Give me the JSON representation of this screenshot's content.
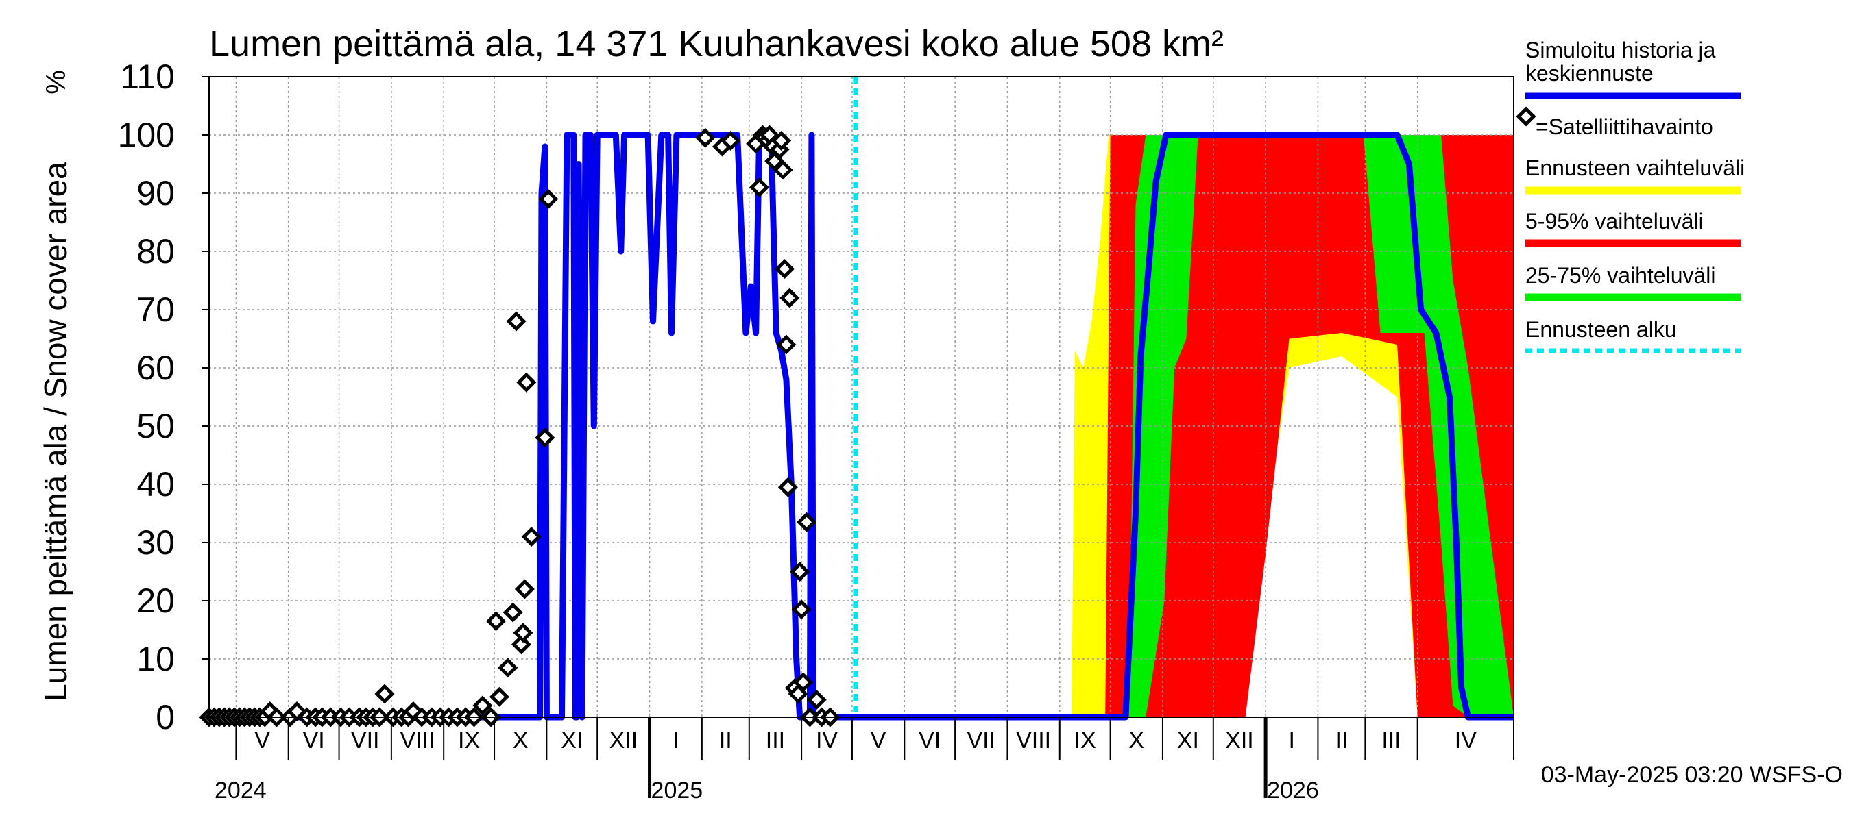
{
  "chart_data": {
    "type": "line",
    "title": "Lumen peittämä ala, 14 371 Kuuhankavesi koko alue 508 km²",
    "ylabel": "Lumen peittämä ala / Snow cover area",
    "yunit": "%",
    "ylim": [
      0,
      110
    ],
    "yticks": [
      0,
      10,
      20,
      30,
      40,
      50,
      60,
      70,
      80,
      90,
      100,
      110
    ],
    "x_axis": {
      "start": "2024-04-15",
      "end": "2026-05-28",
      "months": [
        {
          "label": "V",
          "start": "2024-05-01"
        },
        {
          "label": "VI",
          "start": "2024-06-01"
        },
        {
          "label": "VII",
          "start": "2024-07-01"
        },
        {
          "label": "VIII",
          "start": "2024-08-01"
        },
        {
          "label": "IX",
          "start": "2024-09-01"
        },
        {
          "label": "X",
          "start": "2024-10-01"
        },
        {
          "label": "XI",
          "start": "2024-11-01"
        },
        {
          "label": "XII",
          "start": "2024-12-01"
        },
        {
          "label": "I",
          "start": "2025-01-01"
        },
        {
          "label": "II",
          "start": "2025-02-01"
        },
        {
          "label": "III",
          "start": "2025-03-01"
        },
        {
          "label": "IV",
          "start": "2025-04-01"
        },
        {
          "label": "V",
          "start": "2025-05-01"
        },
        {
          "label": "VI",
          "start": "2025-06-01"
        },
        {
          "label": "VII",
          "start": "2025-07-01"
        },
        {
          "label": "VIII",
          "start": "2025-08-01"
        },
        {
          "label": "IX",
          "start": "2025-09-01"
        },
        {
          "label": "X",
          "start": "2025-10-01"
        },
        {
          "label": "XI",
          "start": "2025-11-01"
        },
        {
          "label": "XII",
          "start": "2025-12-01"
        },
        {
          "label": "I",
          "start": "2026-01-01"
        },
        {
          "label": "II",
          "start": "2026-02-01"
        },
        {
          "label": "III",
          "start": "2026-03-01"
        },
        {
          "label": "IV",
          "start": "2026-04-01"
        }
      ],
      "years": [
        {
          "label": "2024",
          "start": "2024-04-15"
        },
        {
          "label": "2025",
          "start": "2025-01-01"
        },
        {
          "label": "2026",
          "start": "2026-01-01"
        }
      ]
    },
    "forecast_start": "2025-05-03",
    "series": [
      {
        "name": "Simuloitu historia ja keskiennuste",
        "color": "#0000ee",
        "points": [
          [
            "2024-04-15",
            0
          ],
          [
            "2024-10-28",
            0
          ],
          [
            "2024-10-29",
            90
          ],
          [
            "2024-10-31",
            98
          ],
          [
            "2024-11-01",
            0
          ],
          [
            "2024-11-10",
            0
          ],
          [
            "2024-11-13",
            100
          ],
          [
            "2024-11-17",
            100
          ],
          [
            "2024-11-18",
            0
          ],
          [
            "2024-11-19",
            0
          ],
          [
            "2024-11-20",
            95
          ],
          [
            "2024-11-22",
            0
          ],
          [
            "2024-11-24",
            100
          ],
          [
            "2024-11-27",
            100
          ],
          [
            "2024-11-29",
            50
          ],
          [
            "2024-12-01",
            100
          ],
          [
            "2024-12-12",
            100
          ],
          [
            "2024-12-15",
            80
          ],
          [
            "2024-12-17",
            100
          ],
          [
            "2024-12-31",
            100
          ],
          [
            "2025-01-03",
            68
          ],
          [
            "2025-01-08",
            100
          ],
          [
            "2025-01-12",
            100
          ],
          [
            "2025-01-14",
            66
          ],
          [
            "2025-01-17",
            100
          ],
          [
            "2025-02-04",
            100
          ],
          [
            "2025-02-08",
            100
          ],
          [
            "2025-02-12",
            100
          ],
          [
            "2025-02-22",
            100
          ],
          [
            "2025-02-27",
            66
          ],
          [
            "2025-03-02",
            74
          ],
          [
            "2025-03-05",
            66
          ],
          [
            "2025-03-07",
            100
          ],
          [
            "2025-03-14",
            100
          ],
          [
            "2025-03-17",
            66
          ],
          [
            "2025-03-20",
            63
          ],
          [
            "2025-03-23",
            58
          ],
          [
            "2025-03-26",
            40
          ],
          [
            "2025-03-29",
            10
          ],
          [
            "2025-03-31",
            0
          ],
          [
            "2025-04-06",
            0
          ],
          [
            "2025-04-07",
            100
          ],
          [
            "2025-04-08",
            0
          ],
          [
            "2025-05-03",
            0
          ],
          [
            "2025-10-10",
            0
          ],
          [
            "2025-10-16",
            35
          ],
          [
            "2025-10-19",
            62
          ],
          [
            "2025-10-23",
            75
          ],
          [
            "2025-10-28",
            92
          ],
          [
            "2025-11-03",
            100
          ],
          [
            "2026-03-20",
            100
          ],
          [
            "2026-03-27",
            95
          ],
          [
            "2026-04-03",
            70
          ],
          [
            "2026-04-12",
            66
          ],
          [
            "2026-04-20",
            55
          ],
          [
            "2026-04-24",
            30
          ],
          [
            "2026-04-27",
            5
          ],
          [
            "2026-05-01",
            0
          ],
          [
            "2026-05-28",
            0
          ]
        ]
      }
    ],
    "bands": [
      {
        "name": "Ennusteen vaihteluväli",
        "color": "#ffff00",
        "points": [
          [
            "2025-09-08",
            0,
            0
          ],
          [
            "2025-09-10",
            0,
            63
          ],
          [
            "2025-09-15",
            0,
            60
          ],
          [
            "2025-09-20",
            0,
            68
          ],
          [
            "2025-09-25",
            0,
            82
          ],
          [
            "2025-09-30",
            0,
            100
          ],
          [
            "2025-10-20",
            0,
            100
          ],
          [
            "2025-11-20",
            0,
            100
          ],
          [
            "2025-12-15",
            0,
            100
          ],
          [
            "2026-01-15",
            60,
            100
          ],
          [
            "2026-02-15",
            62,
            100
          ],
          [
            "2026-03-20",
            55,
            100
          ],
          [
            "2026-04-01",
            0,
            100
          ],
          [
            "2026-05-20",
            0,
            100
          ],
          [
            "2026-05-28",
            0,
            100
          ]
        ]
      },
      {
        "name": "5-95% vaihteluväli",
        "color": "#ff0000",
        "points": [
          [
            "2025-09-28",
            0,
            0
          ],
          [
            "2025-10-01",
            0,
            100
          ],
          [
            "2025-10-20",
            0,
            100
          ],
          [
            "2025-11-20",
            0,
            100
          ],
          [
            "2025-12-20",
            0,
            100
          ],
          [
            "2026-01-01",
            28,
            100
          ],
          [
            "2026-01-15",
            65,
            100
          ],
          [
            "2026-02-15",
            66,
            100
          ],
          [
            "2026-03-20",
            64,
            100
          ],
          [
            "2026-04-01",
            0,
            100
          ],
          [
            "2026-05-20",
            0,
            100
          ],
          [
            "2026-05-28",
            0,
            100
          ]
        ]
      },
      {
        "name": "25-75% vaihteluväli",
        "color": "#00ee00",
        "points": [
          [
            "2025-10-12",
            0,
            0
          ],
          [
            "2025-10-16",
            0,
            88
          ],
          [
            "2025-10-22",
            0,
            100
          ],
          [
            "2025-11-02",
            20,
            100
          ],
          [
            "2025-11-08",
            60,
            100
          ],
          [
            "2025-11-15",
            65,
            100
          ],
          [
            "2025-11-22",
            100,
            100
          ],
          [
            "2026-02-28",
            100,
            100
          ],
          [
            "2026-03-10",
            66,
            100
          ],
          [
            "2026-04-05",
            66,
            100
          ],
          [
            "2026-04-15",
            30,
            100
          ],
          [
            "2026-04-22",
            2,
            75
          ],
          [
            "2026-05-01",
            0,
            60
          ],
          [
            "2026-05-28",
            0,
            0
          ]
        ]
      }
    ],
    "observations": {
      "name": "=Satelliittihavainto",
      "points": [
        [
          "2024-04-15",
          0
        ],
        [
          "2024-04-18",
          0
        ],
        [
          "2024-04-21",
          0
        ],
        [
          "2024-04-24",
          0
        ],
        [
          "2024-04-27",
          0
        ],
        [
          "2024-04-30",
          0
        ],
        [
          "2024-05-03",
          0
        ],
        [
          "2024-05-06",
          0
        ],
        [
          "2024-05-09",
          0
        ],
        [
          "2024-05-12",
          0
        ],
        [
          "2024-05-15",
          0
        ],
        [
          "2024-05-18",
          0
        ],
        [
          "2024-05-21",
          1
        ],
        [
          "2024-05-25",
          0
        ],
        [
          "2024-06-02",
          0
        ],
        [
          "2024-06-06",
          1
        ],
        [
          "2024-06-12",
          0
        ],
        [
          "2024-06-17",
          0
        ],
        [
          "2024-06-21",
          0
        ],
        [
          "2024-06-26",
          0
        ],
        [
          "2024-07-02",
          0
        ],
        [
          "2024-07-07",
          0
        ],
        [
          "2024-07-13",
          0
        ],
        [
          "2024-07-17",
          0
        ],
        [
          "2024-07-21",
          0
        ],
        [
          "2024-07-25",
          0
        ],
        [
          "2024-07-28",
          4
        ],
        [
          "2024-08-02",
          0
        ],
        [
          "2024-08-07",
          0
        ],
        [
          "2024-08-11",
          0
        ],
        [
          "2024-08-14",
          1
        ],
        [
          "2024-08-19",
          0
        ],
        [
          "2024-08-25",
          0
        ],
        [
          "2024-08-30",
          0
        ],
        [
          "2024-09-04",
          0
        ],
        [
          "2024-09-09",
          0
        ],
        [
          "2024-09-14",
          0
        ],
        [
          "2024-09-19",
          0
        ],
        [
          "2024-09-24",
          2
        ],
        [
          "2024-09-29",
          0
        ],
        [
          "2024-10-02",
          16.5
        ],
        [
          "2024-10-04",
          3.5
        ],
        [
          "2024-10-09",
          8.5
        ],
        [
          "2024-10-12",
          18
        ],
        [
          "2024-10-14",
          68
        ],
        [
          "2024-10-17",
          12.5
        ],
        [
          "2024-10-18",
          14.5
        ],
        [
          "2024-10-19",
          22
        ],
        [
          "2024-10-20",
          57.5
        ],
        [
          "2024-10-23",
          31
        ],
        [
          "2024-10-31",
          48
        ],
        [
          "2024-11-02",
          89
        ],
        [
          "2025-02-03",
          99.5
        ],
        [
          "2025-02-13",
          98
        ],
        [
          "2025-02-18",
          99
        ],
        [
          "2025-03-05",
          98.5
        ],
        [
          "2025-03-07",
          91
        ],
        [
          "2025-03-09",
          100
        ],
        [
          "2025-03-10",
          99.5
        ],
        [
          "2025-03-12",
          99
        ],
        [
          "2025-03-13",
          100
        ],
        [
          "2025-03-15",
          98
        ],
        [
          "2025-03-16",
          95.5
        ],
        [
          "2025-03-19",
          97.5
        ],
        [
          "2025-03-20",
          99
        ],
        [
          "2025-03-21",
          94
        ],
        [
          "2025-03-22",
          77
        ],
        [
          "2025-03-23",
          64
        ],
        [
          "2025-03-24",
          39.5
        ],
        [
          "2025-03-25",
          72
        ],
        [
          "2025-03-28",
          5
        ],
        [
          "2025-03-30",
          4
        ],
        [
          "2025-03-31",
          25
        ],
        [
          "2025-04-01",
          18.5
        ],
        [
          "2025-04-02",
          6
        ],
        [
          "2025-04-04",
          33.5
        ],
        [
          "2025-04-06",
          0
        ],
        [
          "2025-04-10",
          3
        ],
        [
          "2025-04-13",
          0
        ],
        [
          "2025-04-18",
          0
        ]
      ]
    },
    "legend": [
      {
        "label": "Simuloitu historia ja",
        "label2": "keskiennuste",
        "color": "#0000ee",
        "kind": "line"
      },
      {
        "label": "=Satelliittihavainto",
        "color": "#000000",
        "kind": "marker"
      },
      {
        "label": "Ennusteen vaihteluväli",
        "color": "#ffff00",
        "kind": "line"
      },
      {
        "label": "5-95% vaihteluväli",
        "color": "#ff0000",
        "kind": "line"
      },
      {
        "label": "25-75% vaihteluväli",
        "color": "#00ee00",
        "kind": "line"
      },
      {
        "label": "Ennusteen alku",
        "color": "#00e5ee",
        "kind": "dashed"
      }
    ],
    "footer": "03-May-2025 03:20 WSFS-O",
    "grid": true
  }
}
